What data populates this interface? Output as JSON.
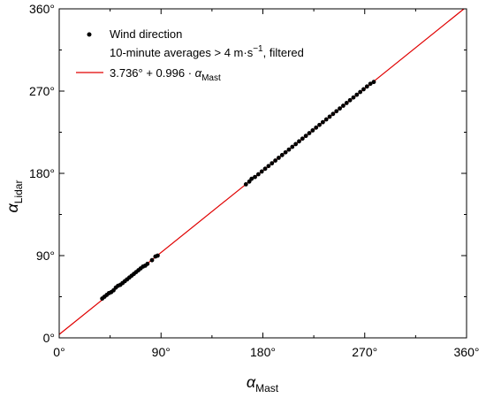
{
  "chart_data": {
    "type": "scatter",
    "xlabel": {
      "symbol": "α",
      "subscript": "Mast"
    },
    "ylabel": {
      "symbol": "α",
      "subscript": "Lidar"
    },
    "xlim": [
      0,
      360
    ],
    "ylim": [
      0,
      360
    ],
    "x_ticks": [
      "0°",
      "90°",
      "180°",
      "270°",
      "360°"
    ],
    "y_ticks": [
      "0°",
      "90°",
      "180°",
      "270°",
      "360°"
    ],
    "x_tick_values": [
      0,
      90,
      180,
      270,
      360
    ],
    "y_tick_values": [
      0,
      90,
      180,
      270,
      360
    ],
    "grid": false,
    "legend_position": "top-left",
    "legend": {
      "series_label": "Wind direction",
      "series_note_prefix": "10-minute averages > 4 m·s",
      "series_note_sup": "−1",
      "series_note_suffix": ", filtered",
      "fit_label_prefix": "3.736° + 0.996 · ",
      "fit_label_symbol": "α",
      "fit_label_sub": "Mast"
    },
    "series": [
      {
        "name": "Wind direction",
        "color": "#000000",
        "points": [
          [
            38,
            43
          ],
          [
            40,
            45
          ],
          [
            42,
            47
          ],
          [
            44,
            49
          ],
          [
            46,
            50
          ],
          [
            48,
            52
          ],
          [
            50,
            55
          ],
          [
            52,
            57
          ],
          [
            54,
            58
          ],
          [
            56,
            60
          ],
          [
            58,
            62
          ],
          [
            60,
            64
          ],
          [
            62,
            66
          ],
          [
            64,
            68
          ],
          [
            66,
            70
          ],
          [
            68,
            72
          ],
          [
            70,
            74
          ],
          [
            72,
            76
          ],
          [
            74,
            78
          ],
          [
            76,
            79
          ],
          [
            78,
            81
          ],
          [
            82,
            85
          ],
          [
            85,
            89
          ],
          [
            87,
            90
          ],
          [
            165,
            168
          ],
          [
            168,
            171
          ],
          [
            170,
            174
          ],
          [
            173,
            176
          ],
          [
            176,
            179
          ],
          [
            179,
            182
          ],
          [
            182,
            185
          ],
          [
            185,
            188
          ],
          [
            188,
            191
          ],
          [
            191,
            194
          ],
          [
            194,
            197
          ],
          [
            197,
            200
          ],
          [
            200,
            203
          ],
          [
            203,
            206
          ],
          [
            206,
            209
          ],
          [
            209,
            212
          ],
          [
            212,
            215
          ],
          [
            215,
            218
          ],
          [
            218,
            221
          ],
          [
            221,
            224
          ],
          [
            224,
            227
          ],
          [
            227,
            230
          ],
          [
            230,
            233
          ],
          [
            233,
            236
          ],
          [
            236,
            239
          ],
          [
            239,
            242
          ],
          [
            242,
            245
          ],
          [
            245,
            248
          ],
          [
            248,
            251
          ],
          [
            251,
            254
          ],
          [
            254,
            257
          ],
          [
            257,
            260
          ],
          [
            260,
            263
          ],
          [
            263,
            266
          ],
          [
            266,
            269
          ],
          [
            269,
            272
          ],
          [
            272,
            275
          ],
          [
            275,
            278
          ],
          [
            278,
            280
          ]
        ]
      },
      {
        "name": "3.736° + 0.996 · αMast",
        "type": "line",
        "color": "#e00000",
        "intercept": 3.736,
        "slope": 0.996
      }
    ]
  }
}
